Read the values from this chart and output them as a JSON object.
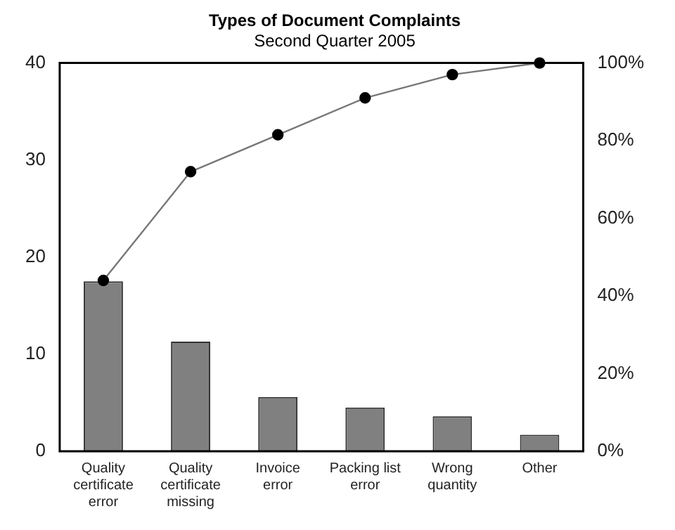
{
  "chart_data": {
    "type": "bar",
    "title": "Types of Document Complaints",
    "subtitle": "Second Quarter 2005",
    "categories": [
      "Quality certificate error",
      "Quality certificate missing",
      "Invoice error",
      "Packing list error",
      "Wrong quantity",
      "Other"
    ],
    "series": [
      {
        "color": "#808080",
        "values": [
          17.5,
          11.3,
          5.6,
          4.5,
          3.6,
          1.7
        ]
      },
      {
        "type": "line",
        "axis": "y2",
        "color": "#000000",
        "marker": "circle",
        "values": [
          44,
          72,
          81.5,
          91,
          97,
          100
        ]
      }
    ],
    "ylim": [
      0,
      40
    ],
    "yticks": [
      0,
      10,
      20,
      30,
      40
    ],
    "y2lim": [
      0,
      100
    ],
    "y2ticks": [
      {
        "value": 0,
        "label": "0%"
      },
      {
        "value": 20,
        "label": "20%"
      },
      {
        "value": 40,
        "label": "40%"
      },
      {
        "value": 60,
        "label": "60%"
      },
      {
        "value": 80,
        "label": "80%"
      },
      {
        "value": 100,
        "label": "100%"
      }
    ],
    "grid": false,
    "legend": false
  }
}
